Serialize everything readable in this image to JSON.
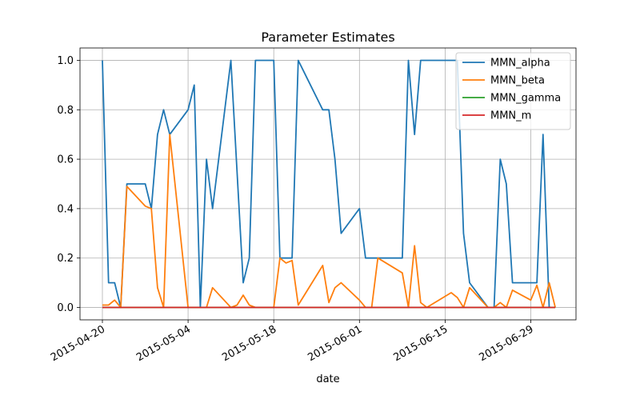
{
  "chart_data": {
    "type": "line",
    "title": "Parameter Estimates",
    "xlabel": "date",
    "ylabel": "",
    "xlim": [
      "2015-04-20",
      "2015-07-02"
    ],
    "ylim": [
      -0.05,
      1.05
    ],
    "grid": true,
    "legend_position": "top-right",
    "x_ticks": [
      "2015-04-20",
      "2015-05-04",
      "2015-05-18",
      "2015-06-01",
      "2015-06-15",
      "2015-06-29"
    ],
    "y_ticks": [
      0.0,
      0.2,
      0.4,
      0.6,
      0.8,
      1.0
    ],
    "y_tick_labels": [
      "0.0",
      "0.2",
      "0.4",
      "0.6",
      "0.8",
      "1.0"
    ],
    "series": [
      {
        "name": "MMN_alpha",
        "color": "#1f77b4",
        "points": [
          [
            "2015-04-20",
            1.0
          ],
          [
            "2015-04-21",
            0.1
          ],
          [
            "2015-04-22",
            0.1
          ],
          [
            "2015-04-23",
            0.0
          ],
          [
            "2015-04-24",
            0.5
          ],
          [
            "2015-04-27",
            0.5
          ],
          [
            "2015-04-28",
            0.4
          ],
          [
            "2015-04-29",
            0.7
          ],
          [
            "2015-04-30",
            0.8
          ],
          [
            "2015-05-01",
            0.7
          ],
          [
            "2015-05-04",
            0.8
          ],
          [
            "2015-05-05",
            0.9
          ],
          [
            "2015-05-06",
            0.0
          ],
          [
            "2015-05-07",
            0.6
          ],
          [
            "2015-05-08",
            0.4
          ],
          [
            "2015-05-11",
            1.0
          ],
          [
            "2015-05-13",
            0.1
          ],
          [
            "2015-05-14",
            0.2
          ],
          [
            "2015-05-15",
            1.0
          ],
          [
            "2015-05-18",
            1.0
          ],
          [
            "2015-05-19",
            0.2
          ],
          [
            "2015-05-21",
            0.2
          ],
          [
            "2015-05-22",
            1.0
          ],
          [
            "2015-05-26",
            0.8
          ],
          [
            "2015-05-27",
            0.8
          ],
          [
            "2015-05-28",
            0.6
          ],
          [
            "2015-05-29",
            0.3
          ],
          [
            "2015-06-01",
            0.4
          ],
          [
            "2015-06-02",
            0.2
          ],
          [
            "2015-06-08",
            0.2
          ],
          [
            "2015-06-09",
            1.0
          ],
          [
            "2015-06-10",
            0.7
          ],
          [
            "2015-06-11",
            1.0
          ],
          [
            "2015-06-17",
            1.0
          ],
          [
            "2015-06-18",
            0.3
          ],
          [
            "2015-06-19",
            0.1
          ],
          [
            "2015-06-22",
            0.0
          ],
          [
            "2015-06-23",
            0.0
          ],
          [
            "2015-06-24",
            0.6
          ],
          [
            "2015-06-25",
            0.5
          ],
          [
            "2015-06-26",
            0.1
          ],
          [
            "2015-06-30",
            0.1
          ],
          [
            "2015-07-01",
            0.7
          ],
          [
            "2015-07-02",
            0.0
          ]
        ]
      },
      {
        "name": "MMN_beta",
        "color": "#ff7f0e",
        "points": [
          [
            "2015-04-20",
            0.01
          ],
          [
            "2015-04-21",
            0.01
          ],
          [
            "2015-04-22",
            0.03
          ],
          [
            "2015-04-23",
            0.0
          ],
          [
            "2015-04-24",
            0.49
          ],
          [
            "2015-04-27",
            0.41
          ],
          [
            "2015-04-28",
            0.4
          ],
          [
            "2015-04-29",
            0.08
          ],
          [
            "2015-04-30",
            0.0
          ],
          [
            "2015-05-01",
            0.7
          ],
          [
            "2015-05-04",
            0.0
          ],
          [
            "2015-05-07",
            0.0
          ],
          [
            "2015-05-08",
            0.08
          ],
          [
            "2015-05-11",
            0.0
          ],
          [
            "2015-05-12",
            0.01
          ],
          [
            "2015-05-13",
            0.05
          ],
          [
            "2015-05-14",
            0.01
          ],
          [
            "2015-05-15",
            0.0
          ],
          [
            "2015-05-18",
            0.0
          ],
          [
            "2015-05-19",
            0.2
          ],
          [
            "2015-05-20",
            0.18
          ],
          [
            "2015-05-21",
            0.19
          ],
          [
            "2015-05-22",
            0.01
          ],
          [
            "2015-05-26",
            0.17
          ],
          [
            "2015-05-27",
            0.02
          ],
          [
            "2015-05-28",
            0.08
          ],
          [
            "2015-05-29",
            0.1
          ],
          [
            "2015-06-01",
            0.03
          ],
          [
            "2015-06-02",
            0.0
          ],
          [
            "2015-06-03",
            0.0
          ],
          [
            "2015-06-04",
            0.2
          ],
          [
            "2015-06-08",
            0.14
          ],
          [
            "2015-06-09",
            0.0
          ],
          [
            "2015-06-10",
            0.25
          ],
          [
            "2015-06-11",
            0.02
          ],
          [
            "2015-06-12",
            0.0
          ],
          [
            "2015-06-16",
            0.06
          ],
          [
            "2015-06-17",
            0.04
          ],
          [
            "2015-06-18",
            0.0
          ],
          [
            "2015-06-19",
            0.08
          ],
          [
            "2015-06-22",
            0.0
          ],
          [
            "2015-06-23",
            0.0
          ],
          [
            "2015-06-24",
            0.02
          ],
          [
            "2015-06-25",
            0.0
          ],
          [
            "2015-06-26",
            0.07
          ],
          [
            "2015-06-29",
            0.03
          ],
          [
            "2015-06-30",
            0.09
          ],
          [
            "2015-07-01",
            0.0
          ],
          [
            "2015-07-02",
            0.1
          ],
          [
            "2015-07-03",
            0.0
          ]
        ]
      },
      {
        "name": "MMN_gamma",
        "color": "#2ca02c",
        "points": [
          [
            "2015-04-20",
            0.0
          ],
          [
            "2015-07-03",
            0.0
          ]
        ]
      },
      {
        "name": "MMN_m",
        "color": "#d62728",
        "points": [
          [
            "2015-04-20",
            0.0
          ],
          [
            "2015-07-03",
            0.0
          ]
        ]
      }
    ]
  }
}
